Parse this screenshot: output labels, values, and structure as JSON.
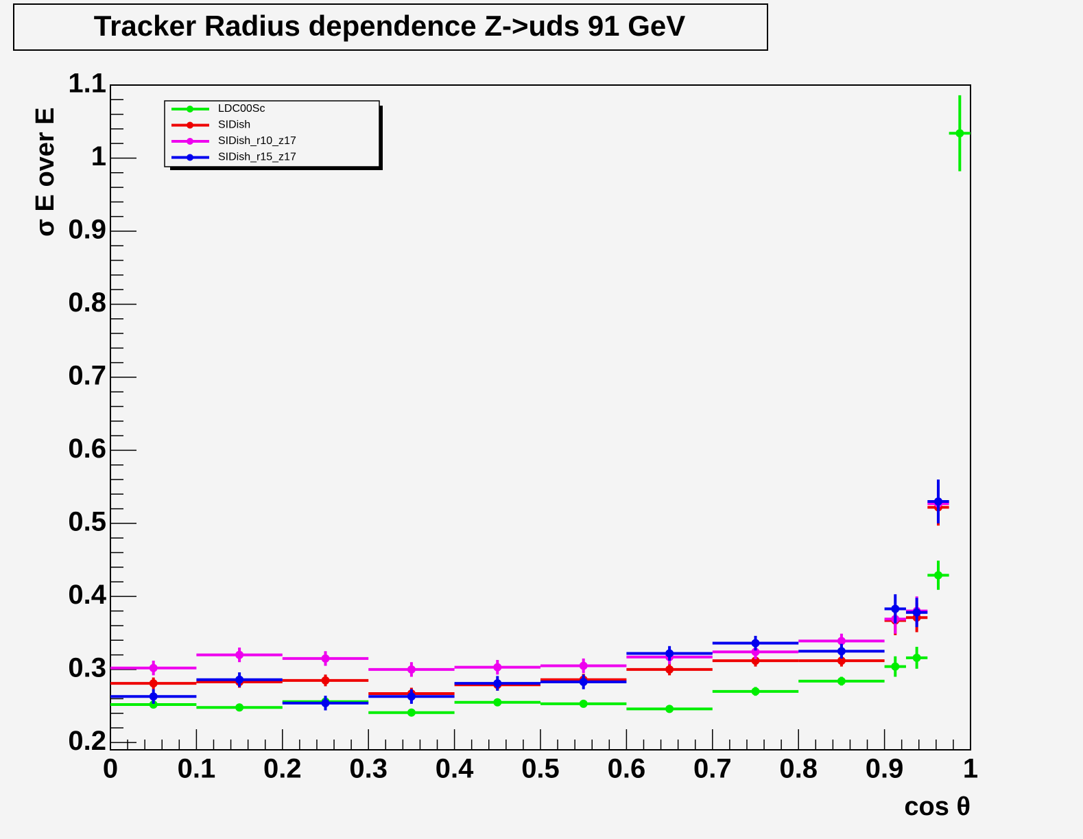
{
  "chart_data": {
    "type": "errorbar",
    "title": "Tracker Radius dependence Z->uds 91 GeV",
    "xlabel": "cos θ",
    "ylabel": "σ E over E",
    "x": [
      0.05,
      0.15,
      0.25,
      0.35,
      0.45,
      0.55,
      0.65,
      0.75,
      0.85,
      0.9125,
      0.9375,
      0.9625,
      0.9875
    ],
    "bins": [
      0,
      0.1,
      0.2,
      0.3,
      0.4,
      0.5,
      0.6,
      0.7,
      0.8,
      0.9,
      0.925,
      0.95,
      0.975,
      1
    ],
    "series": [
      {
        "name": "LDC00Sc",
        "color": "#00ee00",
        "values": [
          0.252,
          0.248,
          0.256,
          0.241,
          0.255,
          0.253,
          0.246,
          0.27,
          0.284,
          0.304,
          0.316,
          0.429,
          1.034
        ],
        "errors": [
          0.005,
          0.005,
          0.005,
          0.005,
          0.005,
          0.005,
          0.005,
          0.006,
          0.006,
          0.014,
          0.015,
          0.02,
          0.052
        ]
      },
      {
        "name": "SIDish",
        "color": "#ee0000",
        "values": [
          0.281,
          0.283,
          0.285,
          0.267,
          0.279,
          0.286,
          0.3,
          0.312,
          0.312,
          0.367,
          0.371,
          0.522,
          null
        ],
        "errors": [
          0.008,
          0.008,
          0.008,
          0.008,
          0.008,
          0.008,
          0.008,
          0.008,
          0.008,
          0.02,
          0.02,
          0.025,
          null
        ]
      },
      {
        "name": "SIDish_r10_z17",
        "color": "#ee00ee",
        "values": [
          0.302,
          0.32,
          0.315,
          0.3,
          0.303,
          0.305,
          0.317,
          0.324,
          0.339,
          0.369,
          0.38,
          0.527,
          null
        ],
        "errors": [
          0.01,
          0.01,
          0.01,
          0.01,
          0.01,
          0.01,
          0.01,
          0.01,
          0.01,
          0.02,
          0.02,
          0.025,
          null
        ]
      },
      {
        "name": "SIDish_r15_z17",
        "color": "#0000ee",
        "values": [
          0.263,
          0.286,
          0.254,
          0.263,
          0.281,
          0.283,
          0.322,
          0.336,
          0.325,
          0.383,
          0.378,
          0.53,
          null
        ],
        "errors": [
          0.01,
          0.01,
          0.01,
          0.01,
          0.01,
          0.01,
          0.01,
          0.01,
          0.01,
          0.02,
          0.02,
          0.03,
          null
        ]
      }
    ],
    "xlim": [
      0,
      1
    ],
    "xticks": [
      0,
      0.1,
      0.2,
      0.3,
      0.4,
      0.5,
      0.6,
      0.7,
      0.8,
      0.9,
      1
    ],
    "ylim": [
      0.19,
      1.1
    ],
    "yticks": [
      0.2,
      0.3,
      0.4,
      0.5,
      0.6,
      0.7,
      0.8,
      0.9,
      1,
      1.1
    ],
    "legend": "upper left"
  }
}
